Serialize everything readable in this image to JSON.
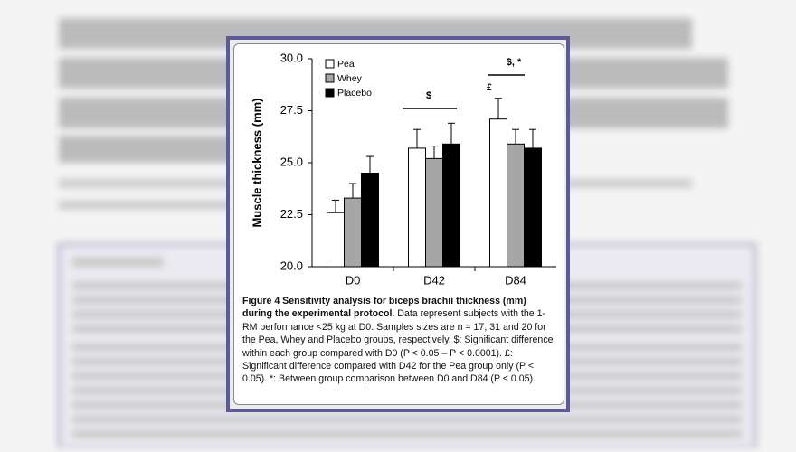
{
  "chart_data": {
    "type": "bar",
    "y_label": "Muscle thickness (mm)",
    "categories": [
      "D0",
      "D42",
      "D84"
    ],
    "series": [
      {
        "name": "Pea",
        "color": "#ffffff",
        "values": [
          22.6,
          25.7,
          27.1
        ],
        "errors": [
          0.6,
          0.9,
          1.0
        ]
      },
      {
        "name": "Whey",
        "color": "#a6a6a6",
        "values": [
          23.3,
          25.2,
          25.9
        ],
        "errors": [
          0.7,
          0.6,
          0.7
        ]
      },
      {
        "name": "Placebo",
        "color": "#000000",
        "values": [
          24.5,
          25.9,
          25.7
        ],
        "errors": [
          0.8,
          1.0,
          0.9
        ]
      }
    ],
    "ylim": [
      20,
      30
    ],
    "yticks": [
      {
        "value": 20,
        "label": "20.0"
      },
      {
        "value": 22.5,
        "label": "22.5"
      },
      {
        "value": 25,
        "label": "25.0"
      },
      {
        "value": 27.5,
        "label": "27.5"
      },
      {
        "value": 30,
        "label": "30.0"
      }
    ],
    "annotations": [
      "$",
      "$, *",
      "£"
    ],
    "legend": "upper left",
    "caption_title": "Figure 4 Sensitivity analysis for biceps brachii thickness (mm) during the experimental protocol.",
    "caption_body": "Data represent subjects with the 1-RM performance <25 kg at D0. Samples sizes are n = 17, 31 and 20 for the Pea, Whey and Placebo groups, respectively. $: Significant difference within each group compared with D0 (P < 0.05 – P < 0.0001). £: Significant difference compared with D42 for the Pea group only (P < 0.05). *: Between group comparison between D0 and D84 (P < 0.05)."
  }
}
